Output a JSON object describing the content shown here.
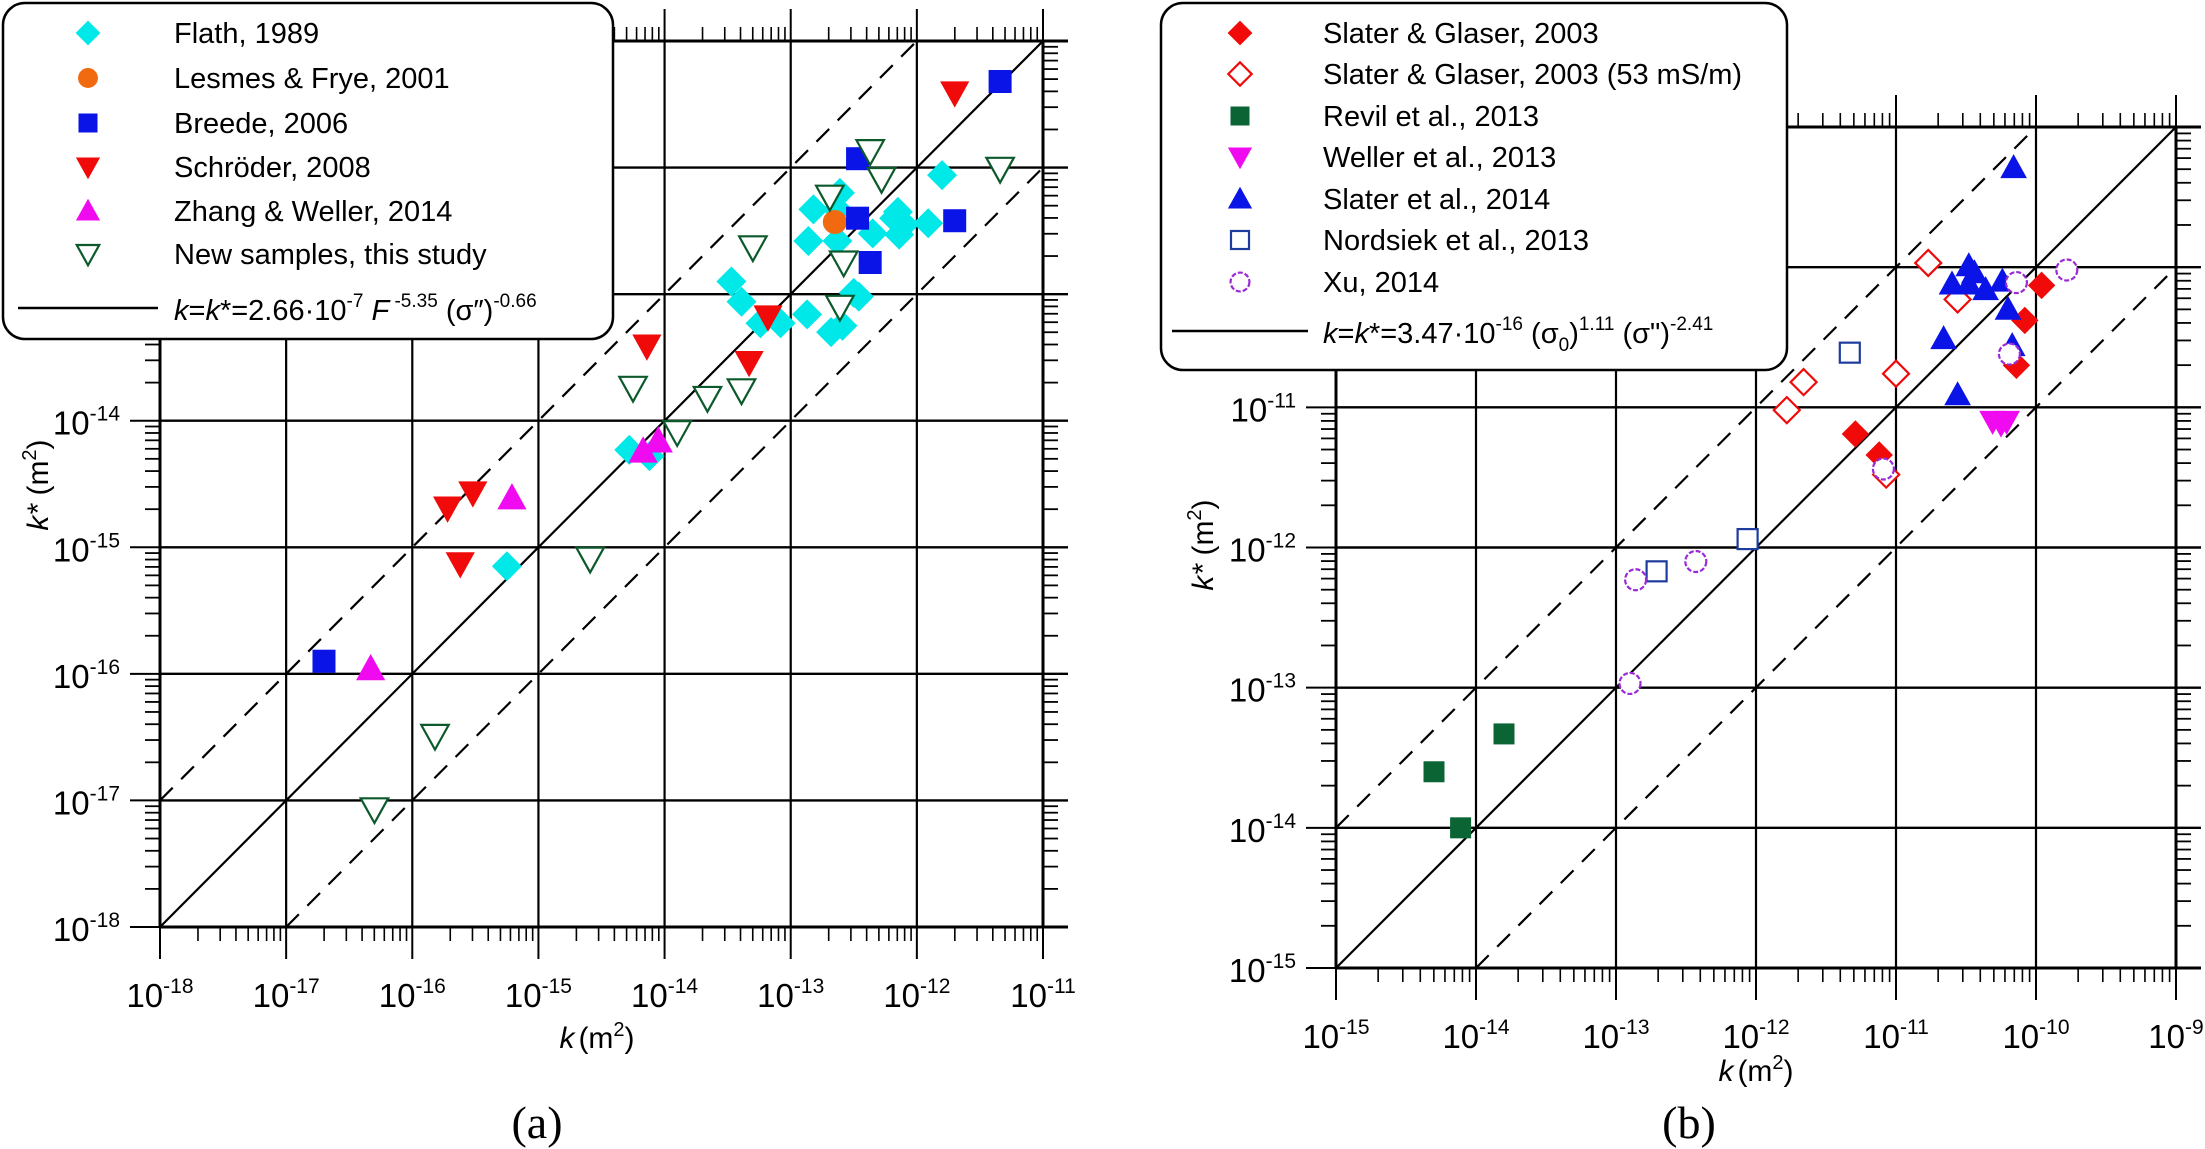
{
  "figure": {
    "panel_labels": [
      "(a)",
      "(b)"
    ]
  },
  "chart_data": [
    {
      "type": "scatter",
      "panel": "(a)",
      "xscale": "log",
      "yscale": "log",
      "xlabel_var": "k",
      "xlabel_unit": "(m",
      "xlabel_unit_sup": "2",
      "xlabel_close": ")",
      "ylabel_var": "k*",
      "ylabel_unit": " (m",
      "ylabel_unit_sup": "2",
      "ylabel_close": ")",
      "xlim_exp": [
        -18,
        -11
      ],
      "ylim_exp": [
        -18,
        -11
      ],
      "xtick_exps": [
        -18,
        -17,
        -16,
        -15,
        -14,
        -13,
        -12,
        -11
      ],
      "ytick_exps": [
        -18,
        -17,
        -16,
        -15,
        -14
      ],
      "grid": true,
      "reference_lines": [
        {
          "name": "1:1 line k = k*",
          "style": "solid",
          "factor_decades": 0
        },
        {
          "name": "factor 10 above",
          "style": "dashed",
          "factor_decades": 1
        },
        {
          "name": "factor 10 below",
          "style": "dashed",
          "factor_decades": -1
        }
      ],
      "legend": {
        "placement": "top-left",
        "equation": {
          "lhs": "k",
          "mid": "=",
          "k2": "k",
          "star": "*=2.66·10",
          "exp1": "-7",
          "F": " F",
          "exp2": " -5.35",
          "sig": " (σ″)",
          "exp3": "-0.66"
        }
      },
      "series": [
        {
          "name": "Flath, 1989",
          "marker": "diamond",
          "filled": true,
          "color": "#00e8e8",
          "points": [
            [
              -11.8,
              -12.06
            ],
            [
              -12.61,
              -12.2
            ],
            [
              -12.82,
              -12.33
            ],
            [
              -12.63,
              -12.33
            ],
            [
              -12.15,
              -12.35
            ],
            [
              -12.18,
              -12.4
            ],
            [
              -12.1,
              -12.45
            ],
            [
              -11.91,
              -12.44
            ],
            [
              -12.35,
              -12.52
            ],
            [
              -12.14,
              -12.53
            ],
            [
              -12.86,
              -12.58
            ],
            [
              -12.63,
              -12.58
            ],
            [
              -13.47,
              -12.9
            ],
            [
              -13.39,
              -13.06
            ],
            [
              -12.5,
              -12.99
            ],
            [
              -12.46,
              -13.02
            ],
            [
              -12.87,
              -13.16
            ],
            [
              -13.24,
              -13.23
            ],
            [
              -13.08,
              -13.23
            ],
            [
              -12.59,
              -13.25
            ],
            [
              -12.68,
              -13.3
            ],
            [
              -14.28,
              -14.23
            ],
            [
              -14.12,
              -14.28
            ],
            [
              -15.25,
              -15.15
            ]
          ]
        },
        {
          "name": "Lesmes & Frye, 2001",
          "marker": "circle",
          "filled": true,
          "color": "#f26a10",
          "points": [
            [
              -12.65,
              -12.43
            ]
          ]
        },
        {
          "name": "Breede, 2006",
          "marker": "square",
          "filled": true,
          "color": "#0a14e6",
          "points": [
            [
              -11.34,
              -11.32
            ],
            [
              -12.47,
              -11.93
            ],
            [
              -12.47,
              -12.4
            ],
            [
              -11.7,
              -12.42
            ],
            [
              -12.37,
              -12.75
            ],
            [
              -16.7,
              -15.9
            ]
          ]
        },
        {
          "name": "Schröder, 2008",
          "marker": "triangle-down",
          "filled": true,
          "color": "#f00a0a",
          "points": [
            [
              -11.7,
              -11.41
            ],
            [
              -13.18,
              -13.18
            ],
            [
              -14.14,
              -13.41
            ],
            [
              -13.33,
              -13.54
            ],
            [
              -15.72,
              -14.69
            ],
            [
              -15.52,
              -14.57
            ],
            [
              -15.62,
              -15.13
            ]
          ]
        },
        {
          "name": "Zhang & Weller, 2014",
          "marker": "triangle-up",
          "filled": true,
          "color": "#f00af0",
          "points": [
            [
              -14.05,
              -14.16
            ],
            [
              -14.17,
              -14.24
            ],
            [
              -15.21,
              -14.61
            ],
            [
              -16.33,
              -15.96
            ]
          ]
        },
        {
          "name": "New samples, this study",
          "marker": "triangle-down",
          "filled": false,
          "color": "#0c5a2c",
          "points": [
            [
              -12.37,
              -11.87
            ],
            [
              -11.34,
              -12.01
            ],
            [
              -12.28,
              -12.09
            ],
            [
              -12.69,
              -12.23
            ],
            [
              -13.3,
              -12.63
            ],
            [
              -12.58,
              -12.75
            ],
            [
              -12.61,
              -13.1
            ],
            [
              -14.25,
              -13.74
            ],
            [
              -13.66,
              -13.82
            ],
            [
              -13.39,
              -13.76
            ],
            [
              -13.9,
              -14.09
            ],
            [
              -14.59,
              -15.09
            ],
            [
              -15.82,
              -16.49
            ],
            [
              -16.3,
              -17.07
            ]
          ]
        }
      ]
    },
    {
      "type": "scatter",
      "panel": "(b)",
      "xscale": "log",
      "yscale": "log",
      "xlabel_var": "k",
      "xlabel_unit": "(m",
      "xlabel_unit_sup": "2",
      "xlabel_close": ")",
      "ylabel_var": "k*",
      "ylabel_unit": " (m",
      "ylabel_unit_sup": "2",
      "ylabel_close": ")",
      "xlim_exp": [
        -15,
        -9
      ],
      "ylim_exp": [
        -15,
        -9
      ],
      "xtick_exps": [
        -15,
        -14,
        -13,
        -12,
        -11,
        -10,
        -9
      ],
      "ytick_exps": [
        -15,
        -14,
        -13,
        -12,
        -11
      ],
      "grid": true,
      "reference_lines": [
        {
          "name": "1:1 line k = k*",
          "style": "solid",
          "factor_decades": 0
        },
        {
          "name": "factor 10 above",
          "style": "dashed",
          "factor_decades": 1
        },
        {
          "name": "factor 10 below",
          "style": "dashed",
          "factor_decades": -1
        }
      ],
      "legend": {
        "placement": "top-left",
        "equation": {
          "lhs": "k",
          "mid": "=",
          "k2": "k",
          "star": "*=3.47·10",
          "exp1": "-16",
          "s0": " (σ",
          "s0sub": "0",
          "s0close": ")",
          "exp2": "1.11",
          "sig": " (σ\")",
          "exp3": "-2.41"
        }
      },
      "series": [
        {
          "name": "Slater & Glaser, 2003",
          "marker": "diamond",
          "filled": true,
          "color": "#f00a0a",
          "points": [
            [
              -9.96,
              -10.13
            ],
            [
              -10.08,
              -10.38
            ],
            [
              -10.14,
              -10.7
            ],
            [
              -11.29,
              -11.19
            ],
            [
              -11.12,
              -11.34
            ]
          ]
        },
        {
          "name": "Slater & Glaser, 2003 (53 mS/m)",
          "marker": "diamond",
          "filled": false,
          "color": "#f00a0a",
          "points": [
            [
              -10.77,
              -9.97
            ],
            [
              -10.56,
              -10.23
            ],
            [
              -11.0,
              -10.76
            ],
            [
              -11.66,
              -10.82
            ],
            [
              -11.78,
              -11.02
            ],
            [
              -11.07,
              -11.48
            ]
          ]
        },
        {
          "name": "Revil et al., 2013",
          "marker": "square",
          "filled": true,
          "color": "#0a6434",
          "points": [
            [
              -14.3,
              -13.6
            ],
            [
              -13.8,
              -13.33
            ],
            [
              -14.11,
              -14.0
            ]
          ]
        },
        {
          "name": "Weller et al., 2013",
          "marker": "triangle-down",
          "filled": true,
          "color": "#f00af0",
          "points": [
            [
              -10.31,
              -11.1
            ],
            [
              -10.25,
              -11.12
            ],
            [
              -10.21,
              -11.1
            ]
          ]
        },
        {
          "name": "Slater et al., 2014",
          "marker": "triangle-up",
          "filled": true,
          "color": "#0a14e6",
          "points": [
            [
              -10.16,
              -9.29
            ],
            [
              -10.48,
              -9.99
            ],
            [
              -10.44,
              -10.04
            ],
            [
              -10.6,
              -10.12
            ],
            [
              -10.48,
              -10.12
            ],
            [
              -10.36,
              -10.16
            ],
            [
              -10.24,
              -10.1
            ],
            [
              -10.2,
              -10.3
            ],
            [
              -10.66,
              -10.51
            ],
            [
              -10.17,
              -10.56
            ],
            [
              -10.56,
              -10.91
            ]
          ]
        },
        {
          "name": "Nordsiek et al., 2013",
          "marker": "square",
          "filled": false,
          "color": "#1e3c9c",
          "points": [
            [
              -11.33,
              -10.61
            ],
            [
              -12.06,
              -11.94
            ],
            [
              -12.71,
              -12.17
            ]
          ]
        },
        {
          "name": "Xu, 2014",
          "marker": "circle",
          "filled": false,
          "color": "#9a2ad6",
          "points": [
            [
              -10.14,
              -10.11
            ],
            [
              -9.78,
              -10.02
            ],
            [
              -10.19,
              -10.62
            ],
            [
              -11.09,
              -11.44
            ],
            [
              -12.86,
              -12.23
            ],
            [
              -12.43,
              -12.1
            ],
            [
              -12.9,
              -12.97
            ]
          ]
        }
      ]
    }
  ]
}
